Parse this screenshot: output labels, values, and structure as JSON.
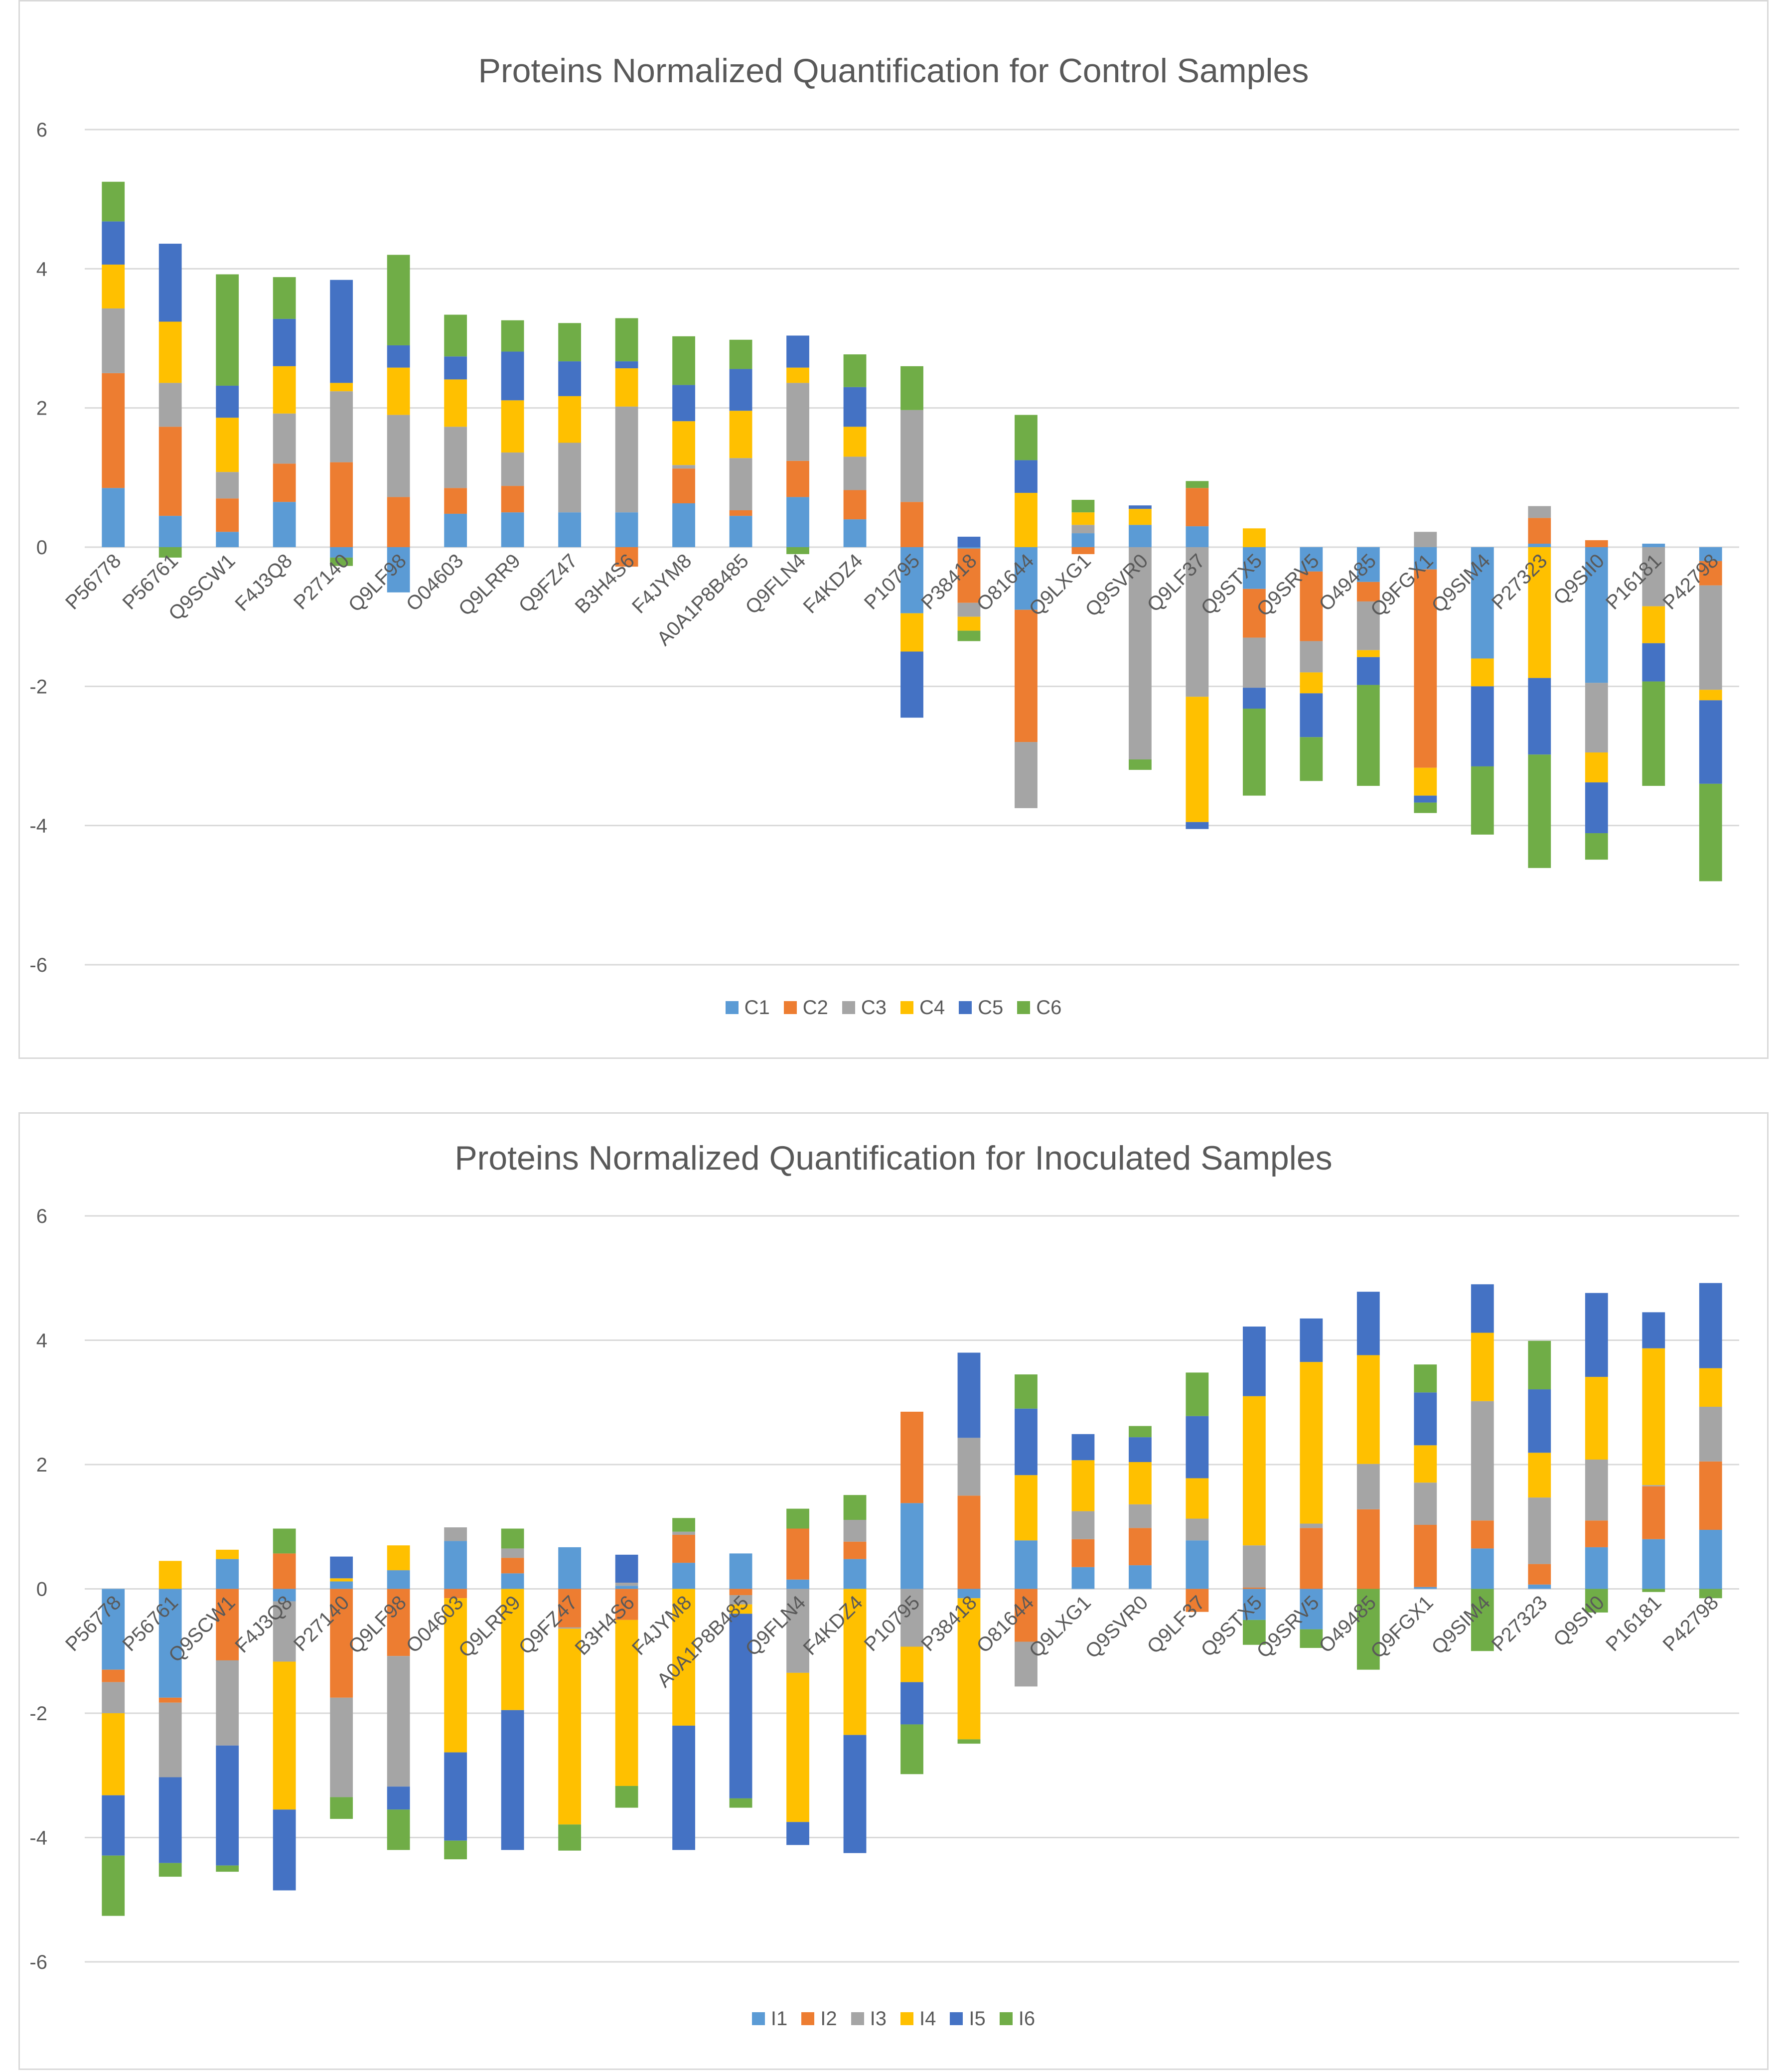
{
  "chart_data": [
    {
      "type": "bar",
      "stacked": true,
      "title": "Proteins Normalized Quantification for Control Samples",
      "xlabel": "",
      "ylabel": "",
      "ylim": [
        -6,
        6
      ],
      "yticks": [
        6,
        4,
        2,
        0,
        -2,
        -4,
        -6
      ],
      "legend_position": "bottom",
      "categories": [
        "P56778",
        "P56761",
        "Q9SCW1",
        "F4J3Q8",
        "P27140",
        "Q9LF98",
        "O04603",
        "Q9LRR9",
        "Q9FZ47",
        "B3H4S6",
        "F4JYM8",
        "A0A1P8B485",
        "Q9FLN4",
        "F4KDZ4",
        "P10795",
        "P38418",
        "O81644",
        "Q9LXG1",
        "Q9SVR0",
        "Q9LF37",
        "Q9STX5",
        "Q9SRV5",
        "O49485",
        "Q9FGX1",
        "Q9SIM4",
        "P27323",
        "Q9SII0",
        "P16181",
        "P42798"
      ],
      "series": [
        {
          "name": "C1",
          "color": "#5b9bd5",
          "values": [
            0.85,
            0.45,
            0.22,
            0.65,
            -0.15,
            -0.65,
            0.48,
            0.5,
            0.5,
            0.5,
            0.63,
            0.45,
            0.72,
            0.4,
            -0.95,
            -0.02,
            -0.9,
            0.2,
            0.32,
            0.3,
            -0.6,
            -0.35,
            -0.5,
            -0.32,
            -1.6,
            0.05,
            -1.95,
            0.05,
            -0.2
          ]
        },
        {
          "name": "C2",
          "color": "#ed7d31",
          "values": [
            1.65,
            1.28,
            0.48,
            0.55,
            1.22,
            0.72,
            0.37,
            0.38,
            0,
            -0.28,
            0.5,
            0.08,
            0.52,
            0.42,
            0.65,
            -0.78,
            -1.9,
            -0.1,
            0,
            0.55,
            -0.7,
            -1.0,
            -0.28,
            -2.85,
            0,
            0.37,
            0.1,
            0,
            -0.35
          ]
        },
        {
          "name": "C3",
          "color": "#a5a5a5",
          "values": [
            0.93,
            0.63,
            0.38,
            0.72,
            1.02,
            1.18,
            0.88,
            0.48,
            1.0,
            1.52,
            0.05,
            0.75,
            1.12,
            0.48,
            1.32,
            -0.2,
            -0.95,
            0.12,
            -3.05,
            -2.15,
            -0.72,
            -0.45,
            -0.7,
            0.22,
            0,
            0.17,
            -1.0,
            -0.85,
            -1.5
          ]
        },
        {
          "name": "C4",
          "color": "#ffc000",
          "values": [
            0.63,
            0.88,
            0.78,
            0.68,
            0.12,
            0.68,
            0.68,
            0.75,
            0.67,
            0.55,
            0.63,
            0.68,
            0.22,
            0.43,
            -0.55,
            -0.2,
            0.78,
            0.18,
            0.23,
            -1.8,
            0.27,
            -0.3,
            -0.1,
            -0.4,
            -0.4,
            -1.88,
            -0.43,
            -0.53,
            -0.15
          ]
        },
        {
          "name": "C5",
          "color": "#4472c4",
          "values": [
            0.62,
            1.12,
            0.46,
            0.68,
            1.48,
            0.32,
            0.33,
            0.7,
            0.5,
            0.1,
            0.52,
            0.6,
            0.46,
            0.57,
            -0.95,
            0.15,
            0.47,
            0,
            0.05,
            -0.1,
            -0.3,
            -0.63,
            -0.4,
            -0.1,
            -1.15,
            -1.1,
            -0.73,
            -0.55,
            -1.2
          ]
        },
        {
          "name": "C6",
          "color": "#70ad47",
          "values": [
            0.57,
            -0.15,
            1.6,
            0.6,
            -0.12,
            1.3,
            0.6,
            0.45,
            0.55,
            0.62,
            0.7,
            0.42,
            -0.1,
            0.47,
            0.63,
            -0.15,
            0.65,
            0.18,
            -0.15,
            0.1,
            -1.25,
            -0.63,
            -1.45,
            -0.15,
            -0.98,
            -1.63,
            -0.38,
            -1.5,
            -1.4
          ]
        }
      ]
    },
    {
      "type": "bar",
      "stacked": true,
      "title": "Proteins Normalized Quantification for Inoculated Samples",
      "xlabel": "",
      "ylabel": "",
      "ylim": [
        -6,
        6
      ],
      "yticks": [
        6,
        4,
        2,
        0,
        -2,
        -4,
        -6
      ],
      "legend_position": "bottom",
      "categories": [
        "P56778",
        "P56761",
        "Q9SCW1",
        "F4J3Q8",
        "P27140",
        "Q9LF98",
        "O04603",
        "Q9LRR9",
        "Q9FZ47",
        "B3H4S6",
        "F4JYM8",
        "A0A1P8B485",
        "Q9FLN4",
        "F4KDZ4",
        "P10795",
        "P38418",
        "O81644",
        "Q9LXG1",
        "Q9SVR0",
        "Q9LF37",
        "Q9STX5",
        "Q9SRV5",
        "O49485",
        "Q9FGX1",
        "Q9SIM4",
        "P27323",
        "Q9SII0",
        "P16181",
        "P42798"
      ],
      "series": [
        {
          "name": "I1",
          "color": "#5b9bd5",
          "values": [
            -1.3,
            -1.75,
            0.48,
            -0.2,
            0.12,
            0.3,
            0.77,
            0.25,
            0.67,
            0.05,
            0.42,
            0.57,
            0.15,
            0.48,
            1.38,
            -0.15,
            0.78,
            0.35,
            0.38,
            0.78,
            -0.5,
            -0.65,
            0,
            0.03,
            0.65,
            0.07,
            0.67,
            0.8,
            0.95
          ]
        },
        {
          "name": "I2",
          "color": "#ed7d31",
          "values": [
            -0.2,
            -0.08,
            -1.15,
            0.57,
            -1.75,
            -1.08,
            -0.15,
            0.25,
            -0.62,
            -0.5,
            0.45,
            -0.1,
            0.82,
            0.28,
            1.47,
            1.5,
            -0.85,
            0.45,
            0.6,
            -0.37,
            0.02,
            0.98,
            1.28,
            1.0,
            0.45,
            0.33,
            0.43,
            0.85,
            1.1
          ]
        },
        {
          "name": "I3",
          "color": "#a5a5a5",
          "values": [
            -0.5,
            -1.2,
            -1.37,
            -0.97,
            -1.6,
            -2.1,
            0.22,
            0.15,
            -0.02,
            0.05,
            0.05,
            -0.15,
            -1.35,
            0.35,
            -0.93,
            0.93,
            -0.72,
            0.45,
            0.38,
            0.35,
            0.68,
            0.07,
            0.73,
            0.68,
            1.92,
            1.07,
            0.98,
            0.02,
            0.88
          ]
        },
        {
          "name": "I4",
          "color": "#ffc000",
          "values": [
            -1.32,
            0.45,
            0.15,
            -2.38,
            0.05,
            0.4,
            -2.48,
            -1.95,
            -3.15,
            -2.67,
            -2.2,
            -0.15,
            -2.4,
            -2.35,
            -0.57,
            -2.27,
            1.05,
            0.82,
            0.68,
            0.65,
            2.4,
            2.6,
            1.75,
            0.6,
            1.1,
            0.72,
            1.33,
            2.2,
            0.62
          ]
        },
        {
          "name": "I5",
          "color": "#4472c4",
          "values": [
            -0.97,
            -1.38,
            -1.93,
            -1.3,
            0.35,
            -0.37,
            -1.42,
            -2.25,
            0,
            0.45,
            -2.0,
            -2.97,
            -0.37,
            -1.9,
            -0.68,
            1.37,
            1.07,
            0.42,
            0.4,
            1.0,
            1.12,
            0.7,
            1.02,
            0.85,
            0.78,
            1.02,
            1.35,
            0.58,
            1.37
          ]
        },
        {
          "name": "I6",
          "color": "#70ad47",
          "values": [
            -0.97,
            -0.22,
            -0.1,
            0.4,
            -0.35,
            -0.65,
            -0.3,
            0.32,
            -0.42,
            -0.35,
            0.22,
            -0.15,
            0.32,
            0.4,
            -0.8,
            -0.07,
            0.55,
            0,
            0.18,
            0.7,
            -0.4,
            -0.3,
            -1.3,
            0.45,
            -1.0,
            0.78,
            -0.38,
            -0.05,
            -0.15
          ]
        }
      ]
    }
  ]
}
